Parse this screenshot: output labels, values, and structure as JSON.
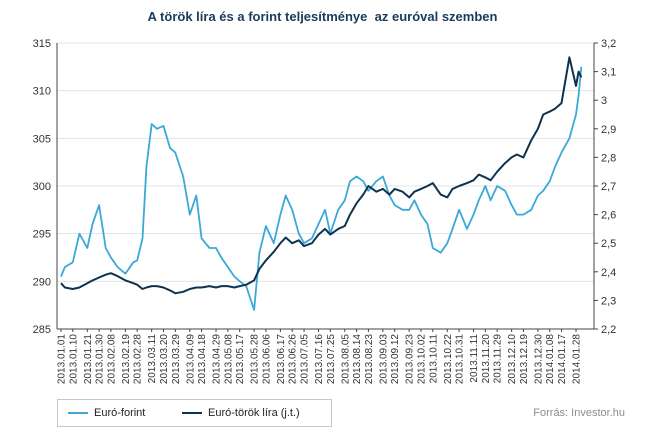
{
  "chart_data": {
    "type": "line",
    "title": "A török líra és a forint teljesítménye  az euróval szemben",
    "source": "Forrás: Investor.hu",
    "legend_position": "bottom-left",
    "grid": "horizontal",
    "y_left": {
      "min": 285,
      "max": 315,
      "ticks": [
        "285",
        "290",
        "295",
        "300",
        "305",
        "310",
        "315"
      ]
    },
    "y_right": {
      "label": "",
      "min": 2.2,
      "max": 3.2,
      "ticks": [
        "2,2",
        "2,3",
        "2,4",
        "2,5",
        "2,6",
        "2,7",
        "2,8",
        "2,9",
        "3",
        "3,1",
        "3,2"
      ]
    },
    "x_tick_labels": [
      "2013.01.01",
      "2013.01.10",
      "2013.01.21",
      "2013.01.30",
      "2013.02.08",
      "2013.02.19",
      "2013.02.28",
      "2013.03.11",
      "2013.03.20",
      "2013.03.29",
      "2013.04.09",
      "2013.04.18",
      "2013.04.29",
      "2013.05.08",
      "2013.05.17",
      "2013.05.28",
      "2013.06.06",
      "2013.06.17",
      "2013.06.26",
      "2013.07.05",
      "2013.07.16",
      "2013.07.25",
      "2013.08.05",
      "2013.08.14",
      "2013.08.23",
      "2013.09.03",
      "2013.09.12",
      "2013.09.23",
      "2013.10.02",
      "2013.10.11",
      "2013.10.22",
      "2013.10.31",
      "2013.11.11",
      "2013.11.20",
      "2013.11.29",
      "2013.12.10",
      "2013.12.19",
      "2013.12.30",
      "2014.01.08",
      "2014.01.17",
      "2014.01.28"
    ],
    "series": [
      {
        "name": "Euró-forint",
        "axis": "left",
        "color": "#3aa9d8",
        "x": [
          "2013.01.01",
          "2013.01.04",
          "2013.01.10",
          "2013.01.15",
          "2013.01.21",
          "2013.01.25",
          "2013.01.30",
          "2013.02.04",
          "2013.02.08",
          "2013.02.13",
          "2013.02.19",
          "2013.02.25",
          "2013.02.28",
          "2013.03.04",
          "2013.03.07",
          "2013.03.11",
          "2013.03.15",
          "2013.03.20",
          "2013.03.25",
          "2013.03.29",
          "2013.04.04",
          "2013.04.09",
          "2013.04.14",
          "2013.04.18",
          "2013.04.24",
          "2013.04.29",
          "2013.05.03",
          "2013.05.08",
          "2013.05.13",
          "2013.05.17",
          "2013.05.22",
          "2013.05.28",
          "2013.06.01",
          "2013.06.06",
          "2013.06.12",
          "2013.06.17",
          "2013.06.21",
          "2013.06.26",
          "2013.07.01",
          "2013.07.05",
          "2013.07.11",
          "2013.07.16",
          "2013.07.21",
          "2013.07.25",
          "2013.07.31",
          "2013.08.05",
          "2013.08.09",
          "2013.08.14",
          "2013.08.19",
          "2013.08.23",
          "2013.08.29",
          "2013.09.03",
          "2013.09.08",
          "2013.09.12",
          "2013.09.18",
          "2013.09.23",
          "2013.09.27",
          "2013.10.02",
          "2013.10.07",
          "2013.10.11",
          "2013.10.17",
          "2013.10.22",
          "2013.10.26",
          "2013.10.31",
          "2013.11.06",
          "2013.11.11",
          "2013.11.15",
          "2013.11.20",
          "2013.11.24",
          "2013.11.29",
          "2013.12.05",
          "2013.12.10",
          "2013.12.14",
          "2013.12.19",
          "2013.12.25",
          "2013.12.30",
          "2014.01.03",
          "2014.01.08",
          "2014.01.12",
          "2014.01.17",
          "2014.01.23",
          "2014.01.28",
          "2014.01.30",
          "2014.02.01"
        ],
        "values": [
          290.5,
          291.5,
          292.0,
          295.0,
          293.5,
          296.0,
          298.0,
          293.5,
          292.5,
          291.5,
          290.8,
          292.0,
          292.2,
          294.5,
          302.0,
          306.5,
          306.0,
          306.3,
          304.0,
          303.5,
          301.0,
          297.0,
          299.0,
          294.5,
          293.5,
          293.5,
          292.5,
          291.5,
          290.5,
          290.0,
          289.5,
          287.0,
          293.0,
          295.8,
          294.0,
          297.0,
          299.0,
          297.5,
          295.0,
          294.0,
          294.5,
          296.0,
          297.5,
          295.0,
          297.5,
          298.5,
          300.5,
          301.0,
          300.5,
          299.5,
          300.5,
          301.0,
          299.0,
          298.0,
          297.5,
          297.5,
          298.5,
          297.0,
          296.0,
          293.5,
          293.0,
          294.0,
          295.5,
          297.5,
          295.5,
          297.0,
          298.5,
          300.0,
          298.5,
          300.0,
          299.5,
          298.0,
          297.0,
          297.0,
          297.5,
          299.0,
          299.5,
          300.5,
          302.0,
          303.5,
          305.0,
          307.5,
          309.5,
          312.5
        ]
      },
      {
        "name": "Euró-török líra (j.t.)",
        "axis": "right",
        "color": "#0d3350",
        "x": [
          "2013.01.01",
          "2013.01.04",
          "2013.01.10",
          "2013.01.15",
          "2013.01.21",
          "2013.01.25",
          "2013.01.30",
          "2013.02.04",
          "2013.02.08",
          "2013.02.13",
          "2013.02.19",
          "2013.02.25",
          "2013.02.28",
          "2013.03.04",
          "2013.03.07",
          "2013.03.11",
          "2013.03.15",
          "2013.03.20",
          "2013.03.25",
          "2013.03.29",
          "2013.04.04",
          "2013.04.09",
          "2013.04.14",
          "2013.04.18",
          "2013.04.24",
          "2013.04.29",
          "2013.05.03",
          "2013.05.08",
          "2013.05.13",
          "2013.05.17",
          "2013.05.22",
          "2013.05.28",
          "2013.06.01",
          "2013.06.06",
          "2013.06.12",
          "2013.06.17",
          "2013.06.21",
          "2013.06.26",
          "2013.07.01",
          "2013.07.05",
          "2013.07.11",
          "2013.07.16",
          "2013.07.21",
          "2013.07.25",
          "2013.07.31",
          "2013.08.05",
          "2013.08.09",
          "2013.08.14",
          "2013.08.19",
          "2013.08.23",
          "2013.08.29",
          "2013.09.03",
          "2013.09.08",
          "2013.09.12",
          "2013.09.18",
          "2013.09.23",
          "2013.09.27",
          "2013.10.02",
          "2013.10.07",
          "2013.10.11",
          "2013.10.17",
          "2013.10.22",
          "2013.10.26",
          "2013.10.31",
          "2013.11.06",
          "2013.11.11",
          "2013.11.15",
          "2013.11.20",
          "2013.11.24",
          "2013.11.29",
          "2013.12.05",
          "2013.12.10",
          "2013.12.14",
          "2013.12.19",
          "2013.12.25",
          "2013.12.30",
          "2014.01.03",
          "2014.01.08",
          "2014.01.12",
          "2014.01.17",
          "2014.01.23",
          "2014.01.28",
          "2014.01.30",
          "2014.02.01"
        ],
        "values": [
          2.36,
          2.345,
          2.34,
          2.345,
          2.36,
          2.37,
          2.38,
          2.39,
          2.395,
          2.385,
          2.37,
          2.36,
          2.355,
          2.34,
          2.345,
          2.35,
          2.35,
          2.345,
          2.335,
          2.325,
          2.33,
          2.34,
          2.345,
          2.345,
          2.35,
          2.345,
          2.35,
          2.35,
          2.345,
          2.35,
          2.355,
          2.37,
          2.41,
          2.44,
          2.47,
          2.5,
          2.52,
          2.5,
          2.51,
          2.49,
          2.5,
          2.53,
          2.55,
          2.53,
          2.55,
          2.56,
          2.6,
          2.64,
          2.67,
          2.7,
          2.68,
          2.69,
          2.67,
          2.69,
          2.68,
          2.66,
          2.68,
          2.69,
          2.7,
          2.71,
          2.67,
          2.66,
          2.69,
          2.7,
          2.71,
          2.72,
          2.74,
          2.73,
          2.72,
          2.75,
          2.78,
          2.8,
          2.81,
          2.8,
          2.86,
          2.9,
          2.95,
          2.96,
          2.97,
          2.99,
          3.15,
          3.05,
          3.1,
          3.08
        ]
      }
    ]
  }
}
